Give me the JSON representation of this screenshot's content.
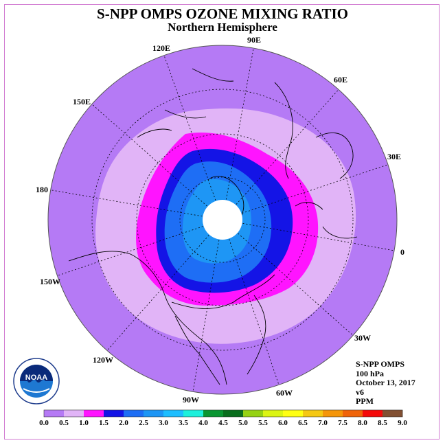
{
  "title": "S-NPP OMPS OZONE MIXING RATIO",
  "subtitle": "Northern Hemisphere",
  "longitude_labels": [
    "90E",
    "60E",
    "30E",
    "0",
    "30W",
    "60W",
    "90W",
    "120W",
    "150W",
    "180",
    "150E",
    "120E"
  ],
  "info": {
    "instrument": "S-NPP OMPS",
    "level": "100 hPa",
    "date": "October 13, 2017",
    "version": "v6",
    "units": "PPM"
  },
  "logo_text": "NOAA",
  "colorbar": {
    "ticks": [
      "0.0",
      "0.5",
      "1.0",
      "1.5",
      "2.0",
      "2.5",
      "3.0",
      "3.5",
      "4.0",
      "4.5",
      "5.0",
      "5.5",
      "6.0",
      "6.5",
      "7.0",
      "7.5",
      "8.0",
      "8.5",
      "9.0"
    ],
    "colors": [
      "#b57af5",
      "#e1b4f7",
      "#ff14ff",
      "#1414e6",
      "#1e6ef5",
      "#1e96f5",
      "#1ebeff",
      "#1ef0dc",
      "#0a9632",
      "#0a6e1e",
      "#96d214",
      "#dcf514",
      "#ffff14",
      "#f5c814",
      "#f5960a",
      "#f0640a",
      "#f50a0a",
      "#825032"
    ]
  },
  "map_colors": {
    "band_0_05": "#b57af5",
    "band_05_10": "#e1b4f7",
    "band_10_15": "#ff14ff",
    "band_15_20": "#1414e6",
    "band_20_25": "#1e6ef5",
    "band_25_30": "#1e96f5",
    "polar_gap": "#ffffff"
  }
}
